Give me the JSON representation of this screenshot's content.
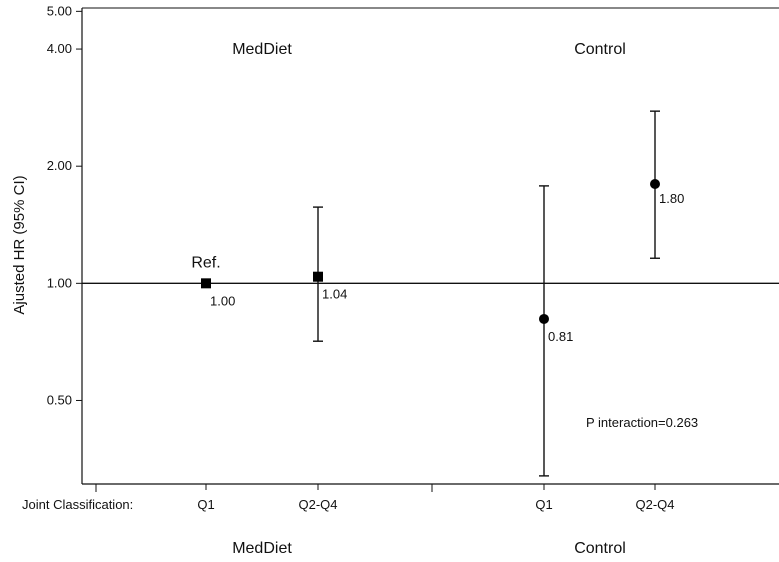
{
  "chart_data": {
    "type": "scatter",
    "yscale": "log",
    "ylabel": "Ajusted HR (95% CI)",
    "ylim": [
      0.305,
      5.1
    ],
    "yticks": [
      0.5,
      1.0,
      2.0,
      4.0,
      5.0
    ],
    "ytick_labels": [
      "0.50",
      "1.00",
      "2.00",
      "4.00",
      "5.00"
    ],
    "reference_line": 1.0,
    "x_axis_title": "Joint Classification:",
    "categories": [
      "Q1",
      "Q2-Q4",
      "Q1",
      "Q2-Q4"
    ],
    "groups_top": [
      "MedDiet",
      "Control"
    ],
    "groups_bottom": [
      "MedDiet",
      "Control"
    ],
    "points": [
      {
        "category": "Q1",
        "group": "MedDiet",
        "marker": "square",
        "hr": 1.0,
        "lower": 1.0,
        "upper": 1.0,
        "label": "1.00",
        "note": "Ref."
      },
      {
        "category": "Q2-Q4",
        "group": "MedDiet",
        "marker": "square",
        "hr": 1.04,
        "lower": 0.71,
        "upper": 1.57,
        "label": "1.04",
        "note": ""
      },
      {
        "category": "Q1",
        "group": "Control",
        "marker": "circle",
        "hr": 0.81,
        "lower": 0.32,
        "upper": 1.78,
        "label": "0.81",
        "note": ""
      },
      {
        "category": "Q2-Q4",
        "group": "Control",
        "marker": "circle",
        "hr": 1.8,
        "lower": 1.16,
        "upper": 2.77,
        "label": "1.80",
        "note": ""
      }
    ],
    "annotation": "P interaction=0.263",
    "grid": false,
    "legend": "none"
  }
}
